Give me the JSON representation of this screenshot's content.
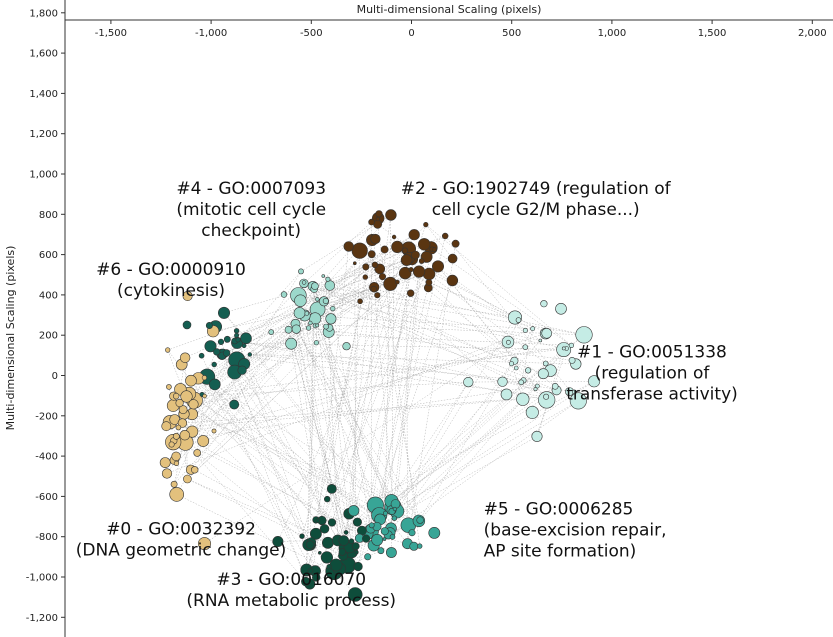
{
  "chart_data": {
    "type": "scatter",
    "title": "",
    "xlabel": "Multi-dimensional Scaling (pixels)",
    "ylabel": "Multi-dimensional Scaling (pixels)",
    "x_axis_position": "top",
    "xlim": [
      -1700,
      2100
    ],
    "ylim": [
      -1290,
      1820
    ],
    "x_ticks": [
      {
        "value": -1500,
        "label": "-1,500"
      },
      {
        "value": -1000,
        "label": "-1,000"
      },
      {
        "value": -500,
        "label": "-500"
      },
      {
        "value": 0,
        "label": "0"
      },
      {
        "value": 500,
        "label": "500"
      },
      {
        "value": 1000,
        "label": "1,000"
      },
      {
        "value": 1500,
        "label": "1,500"
      },
      {
        "value": 2000,
        "label": "2,000"
      }
    ],
    "y_ticks": [
      {
        "value": 1800,
        "label": "1,800"
      },
      {
        "value": 1600,
        "label": "1,600"
      },
      {
        "value": 1400,
        "label": "1,400"
      },
      {
        "value": 1200,
        "label": "1,200"
      },
      {
        "value": 1000,
        "label": "1,000"
      },
      {
        "value": 800,
        "label": "800"
      },
      {
        "value": 600,
        "label": "600"
      },
      {
        "value": 400,
        "label": "400"
      },
      {
        "value": 200,
        "label": "200"
      },
      {
        "value": 0,
        "label": "0"
      },
      {
        "value": -200,
        "label": "-200"
      },
      {
        "value": -400,
        "label": "-400"
      },
      {
        "value": -600,
        "label": "-600"
      },
      {
        "value": -800,
        "label": "-800"
      },
      {
        "value": -1000,
        "label": "-1,000"
      },
      {
        "value": -1200,
        "label": "-1,200"
      }
    ],
    "grid": false,
    "legend": "none",
    "clusters": [
      {
        "id": 0,
        "color": "#e3c17d",
        "label_lines": [
          "#0 - GO:0032392",
          "(DNA geometric change)"
        ],
        "label_at": [
          -1150,
          -790
        ],
        "label_anchor": "middle",
        "center": [
          -1130,
          -250
        ],
        "spread": [
          110,
          430
        ],
        "count": 48,
        "seed": 11
      },
      {
        "id": 1,
        "color": "#c5ece5",
        "label_lines": [
          "#1 - GO:0051338",
          "(regulation of",
          "transferase activity)"
        ],
        "label_at": [
          1200,
          90
        ],
        "label_anchor": "middle",
        "center": [
          620,
          40
        ],
        "spread": [
          240,
          230
        ],
        "count": 44,
        "seed": 23
      },
      {
        "id": 2,
        "color": "#5a3511",
        "label_lines": [
          "#2 - GO:1902749 (regulation of",
          "cell cycle G2/M phase...)"
        ],
        "label_at": [
          620,
          900
        ],
        "label_anchor": "middle",
        "center": [
          -10,
          580
        ],
        "spread": [
          260,
          190
        ],
        "count": 52,
        "seed": 37
      },
      {
        "id": 3,
        "color": "#0e4d3b",
        "label_lines": [
          "#3 - GO:0016070",
          "(RNA metabolic process)"
        ],
        "label_at": [
          -600,
          -1040
        ],
        "label_anchor": "middle",
        "center": [
          -400,
          -830
        ],
        "spread": [
          190,
          200
        ],
        "count": 46,
        "seed": 41
      },
      {
        "id": 4,
        "color": "#9cd8cb",
        "label_lines": [
          "#4 - GO:0007093",
          "(mitotic cell cycle",
          "checkpoint)"
        ],
        "label_at": [
          -800,
          900
        ],
        "label_anchor": "middle",
        "center": [
          -480,
          320
        ],
        "spread": [
          200,
          220
        ],
        "count": 36,
        "seed": 53
      },
      {
        "id": 5,
        "color": "#38a596",
        "label_lines": [
          "#5 - GO:0006285",
          "(base-excision repair,",
          "AP site formation)"
        ],
        "label_at": [
          360,
          -690
        ],
        "label_anchor": "start",
        "center": [
          -110,
          -780
        ],
        "spread": [
          160,
          130
        ],
        "count": 38,
        "seed": 67
      },
      {
        "id": 6,
        "color": "#145e51",
        "label_lines": [
          "#6 - GO:0000910",
          "(cytokinesis)"
        ],
        "label_at": [
          -1200,
          500
        ],
        "label_anchor": "middle",
        "center": [
          -930,
          130
        ],
        "spread": [
          140,
          160
        ],
        "count": 30,
        "seed": 79
      }
    ]
  }
}
